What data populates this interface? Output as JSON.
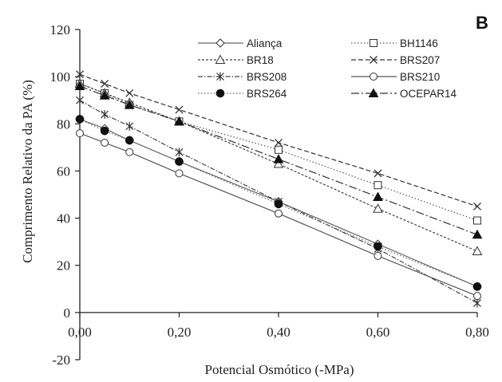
{
  "chart_data": {
    "type": "line",
    "panel_label": "B",
    "xlabel": "Potencial Osmótico (-MPa)",
    "ylabel": "Comprimento Relativo da PA (%)",
    "xlim": [
      0,
      0.8
    ],
    "ylim": [
      -20,
      120
    ],
    "x_ticks": [
      0,
      0.2,
      0.4,
      0.6,
      0.8
    ],
    "x_tick_labels": [
      "0,00",
      "0,20",
      "0,40",
      "0,60",
      "0,80"
    ],
    "y_ticks": [
      -20,
      0,
      20,
      40,
      60,
      80,
      100,
      120
    ],
    "y_tick_labels": [
      "-20",
      "0",
      "20",
      "40",
      "60",
      "80",
      "100",
      "120"
    ],
    "grid": false,
    "legend_position": "top-right",
    "x": [
      0,
      0.05,
      0.1,
      0.2,
      0.4,
      0.6,
      0.8
    ],
    "series": [
      {
        "name": "Aliança",
        "marker": "diamond-open",
        "dash": "solid",
        "values": [
          82,
          78,
          73,
          64,
          47,
          29,
          11
        ]
      },
      {
        "name": "BH1146",
        "marker": "square-open",
        "dash": "dotted",
        "values": [
          97,
          93,
          88,
          81,
          69,
          54,
          39
        ]
      },
      {
        "name": "BR18",
        "marker": "triangle-open",
        "dash": "short-dash",
        "values": [
          97,
          93,
          89,
          81,
          63,
          44,
          26
        ]
      },
      {
        "name": "BRS207",
        "marker": "x",
        "dash": "dash",
        "values": [
          101,
          97,
          93,
          86,
          72,
          59,
          45
        ]
      },
      {
        "name": "BRS208",
        "marker": "asterisk",
        "dash": "dash-dot",
        "values": [
          90,
          84,
          79,
          68,
          47,
          27,
          4
        ]
      },
      {
        "name": "BRS210",
        "marker": "circle-open",
        "dash": "solid",
        "values": [
          76,
          72,
          68,
          59,
          42,
          24,
          7
        ]
      },
      {
        "name": "BRS264",
        "marker": "circle-filled",
        "dash": "dotted",
        "values": [
          82,
          77,
          73,
          64,
          46,
          28,
          11
        ]
      },
      {
        "name": "OCEPAR14",
        "marker": "triangle-filled",
        "dash": "long-dash-dot",
        "values": [
          96,
          92,
          88,
          81,
          65,
          49,
          33
        ]
      }
    ]
  }
}
